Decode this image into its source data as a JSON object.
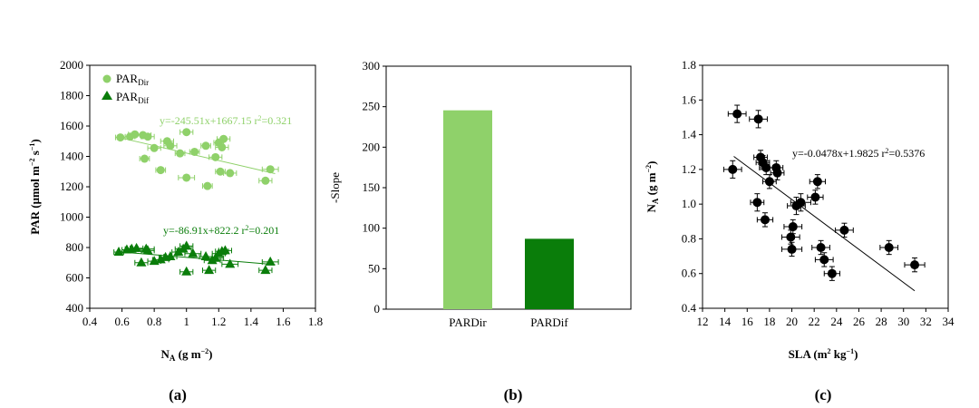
{
  "colors": {
    "dir": "#8fd16a",
    "dif": "#0a7d0a",
    "black": "#000000"
  },
  "captions": [
    "(a)",
    "(b)",
    "(c)"
  ],
  "chart_data": [
    {
      "type": "scatter",
      "caption": "(a)",
      "ylabel": {
        "main": "PAR (μmol m",
        "sup1": "−2",
        "mid": " s",
        "sup2": "−1",
        "end": ")"
      },
      "xlabel": {
        "main": "N",
        "sub": "A",
        "rest": " (g m",
        "sup": "−2",
        "end": ")"
      },
      "xlim": [
        0.4,
        1.8
      ],
      "ylim": [
        400,
        2000
      ],
      "xticks": [
        "0.4",
        "0.6",
        "0.8",
        "1",
        "1.2",
        "1.4",
        "1.6",
        "1.8"
      ],
      "yticks": [
        "400",
        "600",
        "800",
        "1000",
        "1200",
        "1400",
        "1600",
        "1800",
        "2000"
      ],
      "legend": [
        {
          "base": "PAR",
          "sub": "Dir",
          "marker": "circle"
        },
        {
          "base": "PAR",
          "sub": "Dif",
          "marker": "triangle"
        }
      ],
      "series": [
        {
          "key": "dir",
          "equation": "y=-245.51x+1667.15 r",
          "equation_r2": "=0.321",
          "trend": {
            "slope": -245.51,
            "intercept": 1667.15,
            "x": [
              0.6,
              1.55
            ]
          },
          "points": [
            [
              0.59,
              1525,
              0.03
            ],
            [
              0.65,
              1530,
              0.03
            ],
            [
              0.68,
              1545,
              0.04
            ],
            [
              0.73,
              1540,
              0.05
            ],
            [
              0.76,
              1530,
              0.04
            ],
            [
              0.74,
              1385,
              0.03
            ],
            [
              0.8,
              1455,
              0.04
            ],
            [
              0.84,
              1310,
              0.03
            ],
            [
              0.88,
              1500,
              0.04
            ],
            [
              0.9,
              1470,
              0.04
            ],
            [
              0.96,
              1420,
              0.03
            ],
            [
              1.0,
              1560,
              0.04
            ],
            [
              1.0,
              1260,
              0.05
            ],
            [
              1.05,
              1430,
              0.03
            ],
            [
              1.12,
              1470,
              0.03
            ],
            [
              1.13,
              1205,
              0.03
            ],
            [
              1.18,
              1395,
              0.04
            ],
            [
              1.2,
              1490,
              0.03
            ],
            [
              1.21,
              1300,
              0.03
            ],
            [
              1.22,
              1460,
              0.04
            ],
            [
              1.23,
              1515,
              0.04
            ],
            [
              1.27,
              1290,
              0.04
            ],
            [
              1.49,
              1240,
              0.04
            ],
            [
              1.52,
              1315,
              0.05
            ]
          ]
        },
        {
          "key": "dif",
          "equation": "y=-86.91x+822.2 r",
          "equation_r2": "=0.201",
          "trend": {
            "slope": -86.91,
            "intercept": 822.2,
            "x": [
              0.58,
              1.55
            ]
          },
          "points": [
            [
              0.58,
              770,
              0.03
            ],
            [
              0.63,
              785,
              0.03
            ],
            [
              0.66,
              790,
              0.04
            ],
            [
              0.69,
              795,
              0.04
            ],
            [
              0.72,
              700,
              0.04
            ],
            [
              0.75,
              790,
              0.05
            ],
            [
              0.76,
              780,
              0.04
            ],
            [
              0.8,
              710,
              0.04
            ],
            [
              0.84,
              720,
              0.05
            ],
            [
              0.87,
              735,
              0.04
            ],
            [
              0.9,
              740,
              0.04
            ],
            [
              0.95,
              770,
              0.04
            ],
            [
              0.98,
              790,
              0.05
            ],
            [
              1.0,
              810,
              0.04
            ],
            [
              1.0,
              640,
              0.04
            ],
            [
              1.04,
              760,
              0.05
            ],
            [
              1.12,
              740,
              0.04
            ],
            [
              1.14,
              650,
              0.04
            ],
            [
              1.16,
              715,
              0.05
            ],
            [
              1.18,
              730,
              0.05
            ],
            [
              1.2,
              760,
              0.04
            ],
            [
              1.22,
              775,
              0.04
            ],
            [
              1.24,
              780,
              0.04
            ],
            [
              1.27,
              690,
              0.05
            ],
            [
              1.49,
              650,
              0.04
            ],
            [
              1.52,
              705,
              0.05
            ]
          ]
        }
      ]
    },
    {
      "type": "bar",
      "caption": "(b)",
      "ylabel": "-Slope",
      "ylim": [
        0,
        300
      ],
      "yticks": [
        "0",
        "50",
        "100",
        "150",
        "200",
        "250",
        "300"
      ],
      "categories": [
        "PARDir",
        "PARDif"
      ],
      "values": [
        245.51,
        86.91
      ]
    },
    {
      "type": "scatter",
      "caption": "(c)",
      "ylabel": {
        "main": "N",
        "sub": "A",
        "rest": " (g m",
        "sup": "−2",
        "end": ")"
      },
      "xlabel": {
        "main": "SLA (m",
        "sup1": "2",
        "mid": " kg",
        "sup2": "−1",
        "end": ")"
      },
      "xlim": [
        12,
        34
      ],
      "ylim": [
        0.4,
        1.8
      ],
      "xticks": [
        "12",
        "14",
        "16",
        "18",
        "20",
        "22",
        "24",
        "26",
        "28",
        "30",
        "32",
        "34"
      ],
      "yticks": [
        "0.4",
        "0.6",
        "0.8",
        "1.0",
        "1.2",
        "1.4",
        "1.6",
        "1.8"
      ],
      "equation": "y=-0.0478x+1.9825 r",
      "equation_r2": "=0.5376",
      "trend": {
        "slope": -0.0478,
        "intercept": 1.9825,
        "x": [
          14.8,
          31
        ]
      },
      "points": [
        [
          14.7,
          1.2,
          0.8,
          0.05
        ],
        [
          15.1,
          1.52,
          0.8,
          0.05
        ],
        [
          16.9,
          1.01,
          0.6,
          0.05
        ],
        [
          17.0,
          1.49,
          0.8,
          0.05
        ],
        [
          17.2,
          1.27,
          0.6,
          0.04
        ],
        [
          17.4,
          1.24,
          0.6,
          0.04
        ],
        [
          17.6,
          0.91,
          0.7,
          0.04
        ],
        [
          17.7,
          1.21,
          0.6,
          0.04
        ],
        [
          18.0,
          1.13,
          0.6,
          0.04
        ],
        [
          18.6,
          1.21,
          0.6,
          0.04
        ],
        [
          18.7,
          1.18,
          0.6,
          0.04
        ],
        [
          19.9,
          0.81,
          0.8,
          0.04
        ],
        [
          20.0,
          0.74,
          0.9,
          0.04
        ],
        [
          20.1,
          0.87,
          0.8,
          0.04
        ],
        [
          20.4,
          0.99,
          0.8,
          0.05
        ],
        [
          20.8,
          1.01,
          0.9,
          0.05
        ],
        [
          22.1,
          1.04,
          0.7,
          0.04
        ],
        [
          22.3,
          1.13,
          0.7,
          0.04
        ],
        [
          22.6,
          0.75,
          0.8,
          0.04
        ],
        [
          22.9,
          0.68,
          0.8,
          0.04
        ],
        [
          23.6,
          0.6,
          0.7,
          0.04
        ],
        [
          24.7,
          0.85,
          0.8,
          0.04
        ],
        [
          28.7,
          0.75,
          0.8,
          0.04
        ],
        [
          31.0,
          0.65,
          0.9,
          0.04
        ]
      ]
    }
  ]
}
